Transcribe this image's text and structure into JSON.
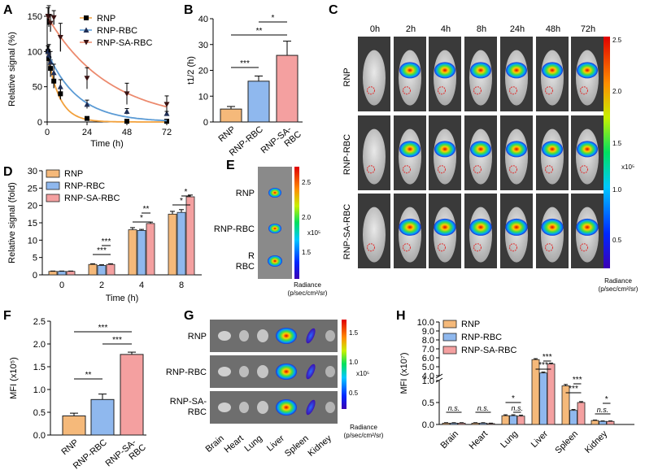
{
  "colors": {
    "rnp": "#f5b97a",
    "rbc": "#8fb8ee",
    "sa": "#f4a0a0",
    "edge": "#222222",
    "curve_rnp": "#f2a13c",
    "curve_rbc": "#5b9bd5",
    "curve_sa": "#ec8a6e",
    "err": "#000000"
  },
  "panels": {
    "A": "A",
    "B": "B",
    "C": "C",
    "D": "D",
    "E": "E",
    "F": "F",
    "G": "G",
    "H": "H"
  },
  "panelC": {
    "times": [
      "0h",
      "2h",
      "4h",
      "8h",
      "24h",
      "48h",
      "72h"
    ],
    "rows": [
      "RNP",
      "RNP-RBC",
      "RNP-SA-RBC"
    ],
    "colorbar": {
      "max": "2.5",
      "ticks": [
        "2.5",
        "2.0",
        "1.5",
        "1.0",
        "0.5"
      ],
      "unit": "x10⁵",
      "label1": "Radiance",
      "label2": "(p/sec/cm²/sr)"
    }
  },
  "panelE": {
    "rows": [
      "RNP",
      "RNP-RBC",
      "RNP-SA-RBC"
    ],
    "colorbar": {
      "ticks": [
        "2.5",
        "2.0",
        "1.5"
      ],
      "unit": "x10⁵",
      "label1": "Radiance",
      "label2": "(p/sec/cm²/sr)"
    }
  },
  "panelG": {
    "rows": [
      "RNP",
      "RNP-RBC",
      "RNP-SA-RBC"
    ],
    "organs": [
      "Brain",
      "Heart",
      "Lung",
      "Liver",
      "Spleen",
      "Kidney"
    ],
    "colorbar": {
      "ticks": [
        "1.5",
        "1.0",
        "0.5"
      ],
      "unit": "x10⁵",
      "label1": "Radiance",
      "label2": "(p/sec/cm²/sr)"
    }
  },
  "chart_data": [
    {
      "panel": "A",
      "type": "line",
      "xlabel": "Time (h)",
      "ylabel": "Relative signal (%)",
      "xlim": [
        0,
        72
      ],
      "ylim": [
        0,
        150
      ],
      "xticks": [
        0,
        24,
        48,
        72
      ],
      "yticks": [
        0,
        50,
        100,
        150
      ],
      "legend": [
        "RNP",
        "RNP-RBC",
        "RNP-SA-RBC"
      ],
      "series": [
        {
          "name": "RNP",
          "marker": "square",
          "x": [
            0.5,
            1,
            2,
            4,
            8,
            24,
            48,
            72
          ],
          "y": [
            100,
            90,
            76,
            58,
            40,
            5,
            1,
            1
          ],
          "err": [
            8,
            10,
            12,
            10,
            8,
            2,
            1,
            1
          ],
          "fit": {
            "a": 100,
            "k": 0.14
          }
        },
        {
          "name": "RNP-RBC",
          "marker": "triangle-up",
          "x": [
            0.5,
            1,
            2,
            4,
            8,
            24,
            48,
            72
          ],
          "y": [
            100,
            95,
            85,
            70,
            50,
            25,
            15,
            12
          ],
          "err": [
            8,
            15,
            15,
            12,
            10,
            6,
            4,
            3
          ],
          "fit": {
            "a": 100,
            "k": 0.055
          }
        },
        {
          "name": "RNP-SA-RBC",
          "marker": "triangle-down",
          "x": [
            0.5,
            1,
            2,
            4,
            8,
            24,
            48,
            72
          ],
          "y": [
            150,
            150,
            140,
            148,
            120,
            62,
            40,
            25
          ],
          "err": [
            12,
            15,
            12,
            10,
            20,
            15,
            15,
            12
          ],
          "fit": {
            "a": 150,
            "k": 0.027
          }
        }
      ]
    },
    {
      "panel": "B",
      "type": "bar",
      "ylabel": "t1/2 (h)",
      "ylim": [
        0,
        40
      ],
      "yticks": [
        0,
        10,
        20,
        30,
        40
      ],
      "categories": [
        "RNP",
        "RNP-RBC",
        "RNP-SA-RBC"
      ],
      "tick_labels": [
        "RNP",
        "RNP-RBC",
        "RNP-SA-\nRBC"
      ],
      "values": [
        5,
        15.8,
        25.8
      ],
      "errors": [
        1,
        2,
        5.5
      ],
      "significance": [
        {
          "pair": [
            0,
            1
          ],
          "label": "***"
        },
        {
          "pair": [
            0,
            2
          ],
          "label": "**"
        },
        {
          "pair": [
            1,
            2
          ],
          "label": "*"
        }
      ]
    },
    {
      "panel": "D",
      "type": "bar",
      "xlabel": "Time (h)",
      "ylabel": "Relative signal (fold)",
      "ylim": [
        0,
        30
      ],
      "yticks": [
        0,
        5,
        10,
        15,
        20,
        25,
        30
      ],
      "categories": [
        "0",
        "2",
        "4",
        "8"
      ],
      "series": [
        {
          "name": "RNP",
          "values": [
            1,
            3,
            13,
            17.5
          ],
          "errors": [
            0.1,
            0.2,
            0.6,
            0.8
          ]
        },
        {
          "name": "RNP-RBC",
          "values": [
            1,
            2.7,
            12.8,
            18
          ],
          "errors": [
            0.1,
            0.2,
            0.3,
            0.8
          ]
        },
        {
          "name": "RNP-SA-RBC",
          "values": [
            1,
            3,
            14.8,
            22.5
          ],
          "errors": [
            0.1,
            0.2,
            0.4,
            0.5
          ]
        }
      ],
      "significance": [
        {
          "group": 1,
          "pair": [
            0,
            2
          ],
          "label": "***"
        },
        {
          "group": 1,
          "pair": [
            1,
            2
          ],
          "label": "***"
        },
        {
          "group": 2,
          "pair": [
            0,
            2
          ],
          "label": "*"
        },
        {
          "group": 2,
          "pair": [
            1,
            2
          ],
          "label": "**"
        },
        {
          "group": 3,
          "pair": [
            0,
            2
          ],
          "label": "*"
        },
        {
          "group": 3,
          "pair": [
            1,
            2
          ],
          "label": "*"
        }
      ]
    },
    {
      "panel": "F",
      "type": "bar",
      "ylabel": "MFI (x10⁵)",
      "ylim": [
        0,
        2.5
      ],
      "yticks": [
        0.0,
        0.5,
        1.0,
        1.5,
        2.0,
        2.5
      ],
      "ytick_labels": [
        "0.0",
        "0.5",
        "1.0",
        "1.5",
        "2.0",
        "2.5"
      ],
      "categories": [
        "RNP",
        "RNP-RBC",
        "RNP-SA-RBC"
      ],
      "tick_labels": [
        "RNP",
        "RNP-RBC",
        "RNP-SA-\nRBC"
      ],
      "values": [
        0.42,
        0.78,
        1.77
      ],
      "errors": [
        0.06,
        0.12,
        0.05
      ],
      "significance": [
        {
          "pair": [
            0,
            1
          ],
          "label": "**"
        },
        {
          "pair": [
            1,
            2
          ],
          "label": "***"
        },
        {
          "pair": [
            0,
            2
          ],
          "label": "***"
        }
      ]
    },
    {
      "panel": "H",
      "type": "bar",
      "ylabel": "MFI (x10⁷)",
      "axis_break": [
        1.0,
        3.0
      ],
      "yticks": [
        0.0,
        0.5,
        1.0,
        4.0,
        5.0,
        6.0,
        7.0,
        8.0,
        9.0,
        10.0
      ],
      "ytick_labels": [
        "0.0",
        "0.5",
        "1.0",
        "4.0",
        "5.0",
        "6.0",
        "7.0",
        "8.0",
        "9.0",
        "10.0"
      ],
      "categories": [
        "Brain",
        "Heart",
        "Lung",
        "Liver",
        "Spleen",
        "Kidney"
      ],
      "series": [
        {
          "name": "RNP",
          "values": [
            0.03,
            0.03,
            0.2,
            5.8,
            0.88,
            0.09
          ],
          "errors": [
            0.01,
            0.01,
            0.02,
            0.1,
            0.03,
            0.01
          ]
        },
        {
          "name": "RNP-RBC",
          "values": [
            0.03,
            0.03,
            0.2,
            4.3,
            0.32,
            0.07
          ],
          "errors": [
            0.01,
            0.01,
            0.02,
            0.1,
            0.02,
            0.01
          ]
        },
        {
          "name": "RNP-SA-RBC",
          "values": [
            0.03,
            0.02,
            0.19,
            5.3,
            0.5,
            0.07
          ],
          "errors": [
            0.01,
            0.01,
            0.02,
            0.1,
            0.02,
            0.01
          ]
        }
      ],
      "significance": [
        {
          "group": 0,
          "pair": [
            0,
            2
          ],
          "label": "n.s."
        },
        {
          "group": 1,
          "pair": [
            0,
            2
          ],
          "label": "n.s."
        },
        {
          "group": 2,
          "pair": [
            1,
            2
          ],
          "label": "n.s."
        },
        {
          "group": 2,
          "pair": [
            0,
            2
          ],
          "label": "*"
        },
        {
          "group": 3,
          "pair": [
            0,
            2
          ],
          "label": "***"
        },
        {
          "group": 3,
          "pair": [
            1,
            2
          ],
          "label": "***"
        },
        {
          "group": 4,
          "pair": [
            0,
            2
          ],
          "label": "***"
        },
        {
          "group": 4,
          "pair": [
            1,
            2
          ],
          "label": "***"
        },
        {
          "group": 5,
          "pair": [
            0,
            2
          ],
          "label": "n.s."
        },
        {
          "group": 5,
          "pair": [
            1,
            2
          ],
          "label": "*"
        }
      ]
    }
  ]
}
